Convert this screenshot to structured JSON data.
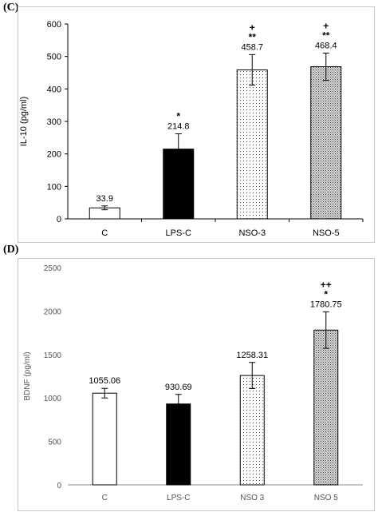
{
  "panels": {
    "c": {
      "label": "(C)"
    },
    "d": {
      "label": "(D)"
    }
  },
  "chart_data": [
    {
      "type": "bar",
      "ylabel": "IL-10 (pg/ml)",
      "xlabel": "",
      "ylim": [
        0,
        600
      ],
      "yticks": [
        0,
        100,
        200,
        300,
        400,
        500,
        600
      ],
      "grid": false,
      "categories": [
        "C",
        "LPS-C",
        "NSO-3",
        "NSO-5"
      ],
      "values": [
        33.9,
        214.8,
        458.7,
        468.4
      ],
      "value_labels": [
        "33.9",
        "214.8",
        "458.7",
        "468.4"
      ],
      "errors": [
        6,
        47,
        47,
        42
      ],
      "significance": [
        [],
        [
          "*"
        ],
        [
          "+",
          "**"
        ],
        [
          "+",
          "**"
        ]
      ],
      "fills": [
        "white",
        "black",
        "light-dots",
        "dense-dots"
      ]
    },
    {
      "type": "bar",
      "ylabel": "BDNF (pg/ml)",
      "xlabel": "",
      "ylim": [
        0,
        2500
      ],
      "yticks": [
        0,
        500,
        1000,
        1500,
        2000,
        2500
      ],
      "grid": false,
      "categories": [
        "C",
        "LPS-C",
        "NSO 3",
        "NSO 5"
      ],
      "values": [
        1055.06,
        930.69,
        1258.31,
        1780.75
      ],
      "value_labels": [
        "1055.06",
        "930.69",
        "1258.31",
        "1780.75"
      ],
      "errors": [
        55,
        110,
        150,
        210
      ],
      "significance": [
        [],
        [],
        [],
        [
          "++",
          "*"
        ]
      ],
      "fills": [
        "white",
        "black",
        "light-dots",
        "dense-dots"
      ]
    }
  ]
}
